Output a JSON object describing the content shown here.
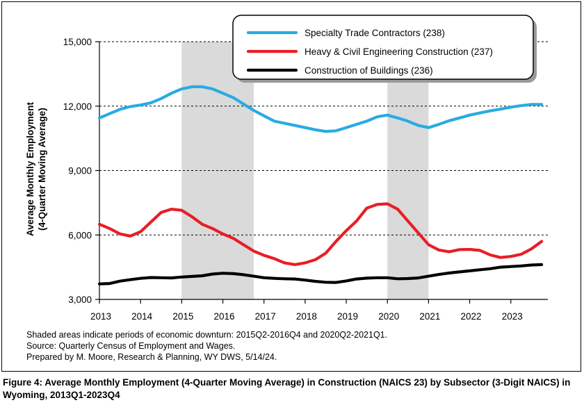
{
  "chart_data": {
    "type": "line",
    "ylabel_lines": [
      "Average Monthly Employment",
      "(4-Quarter Moving Average)"
    ],
    "ylim": [
      3000,
      15000
    ],
    "yticks": [
      3000,
      6000,
      9000,
      12000,
      15000
    ],
    "ytick_labels": [
      "3,000",
      "6,000",
      "9,000",
      "12,000",
      "15,000"
    ],
    "xlim": [
      2013.0,
      2023.9
    ],
    "xticks": [
      2013,
      2014,
      2015,
      2016,
      2017,
      2018,
      2019,
      2020,
      2021,
      2022,
      2023
    ],
    "xtick_labels": [
      "2013",
      "2014",
      "2015",
      "2016",
      "2017",
      "2018",
      "2019",
      "2020",
      "2021",
      "2022",
      "2023"
    ],
    "shaded_periods": [
      [
        2015.0,
        2016.75
      ],
      [
        2020.0,
        2021.0
      ]
    ],
    "legend_position": "top-right",
    "x": [
      2013.0,
      2013.25,
      2013.5,
      2013.75,
      2014.0,
      2014.25,
      2014.5,
      2014.75,
      2015.0,
      2015.25,
      2015.5,
      2015.75,
      2016.0,
      2016.25,
      2016.5,
      2016.75,
      2017.0,
      2017.25,
      2017.5,
      2017.75,
      2018.0,
      2018.25,
      2018.5,
      2018.75,
      2019.0,
      2019.25,
      2019.5,
      2019.75,
      2020.0,
      2020.25,
      2020.5,
      2020.75,
      2021.0,
      2021.25,
      2021.5,
      2021.75,
      2022.0,
      2022.25,
      2022.5,
      2022.75,
      2023.0,
      2023.25,
      2023.5,
      2023.75
    ],
    "series": [
      {
        "name": "Specialty Trade Contractors (238)",
        "color": "#29abe2",
        "values": [
          11450,
          11650,
          11850,
          11980,
          12050,
          12150,
          12350,
          12600,
          12800,
          12900,
          12900,
          12800,
          12600,
          12400,
          12100,
          11800,
          11550,
          11300,
          11200,
          11100,
          11000,
          10900,
          10820,
          10850,
          11000,
          11150,
          11300,
          11500,
          11580,
          11450,
          11300,
          11100,
          11000,
          11150,
          11320,
          11450,
          11580,
          11680,
          11780,
          11860,
          11950,
          12020,
          12080,
          12080
        ]
      },
      {
        "name": "Heavy & Civil Engineering Construction (237)",
        "color": "#e81e25",
        "values": [
          6500,
          6300,
          6050,
          5950,
          6150,
          6600,
          7050,
          7200,
          7150,
          6850,
          6500,
          6300,
          6050,
          5850,
          5550,
          5250,
          5050,
          4900,
          4700,
          4620,
          4700,
          4850,
          5150,
          5700,
          6200,
          6650,
          7250,
          7420,
          7450,
          7200,
          6650,
          6100,
          5550,
          5300,
          5220,
          5320,
          5330,
          5280,
          5070,
          4950,
          5000,
          5100,
          5350,
          5700
        ]
      },
      {
        "name": "Construction of Buildings (236)",
        "color": "#000000",
        "values": [
          3720,
          3740,
          3850,
          3920,
          3980,
          4020,
          4010,
          4000,
          4040,
          4070,
          4100,
          4180,
          4220,
          4200,
          4150,
          4080,
          4010,
          3980,
          3960,
          3950,
          3900,
          3840,
          3800,
          3790,
          3860,
          3950,
          3990,
          4010,
          4010,
          3960,
          3970,
          4000,
          4080,
          4160,
          4230,
          4280,
          4330,
          4380,
          4430,
          4500,
          4530,
          4560,
          4600,
          4620
        ]
      }
    ]
  },
  "notes": [
    "Shaded areas indicate periods of economic downturn: 2015Q2-2016Q4 and 2020Q2-2021Q1.",
    "Source: Quarterly Census of Employment and Wages.",
    "Prepared by M. Moore, Research & Planning, WY DWS, 5/14/24."
  ],
  "caption": "Figure 4: Average Monthly Employment (4-Quarter Moving Average) in Construction (NAICS 23) by Subsector (3-Digit NAICS) in Wyoming, 2013Q1-2023Q4"
}
